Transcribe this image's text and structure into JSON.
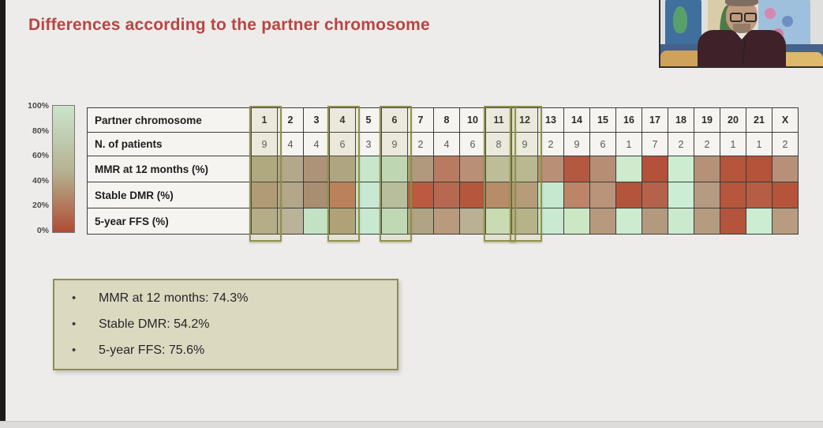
{
  "slide": {
    "title": "Differences according to the partner chromosome"
  },
  "legend": {
    "ticks": [
      "100%",
      "80%",
      "60%",
      "40%",
      "20%",
      "0%"
    ],
    "gradient_top": "#cbe4ca",
    "gradient_mid": "#b5b291",
    "gradient_bottom": "#b04c33"
  },
  "chart_data": {
    "type": "heatmap",
    "title": "Differences according to the partner chromosome",
    "columns_label": "Partner chromosome",
    "columns": [
      "1",
      "2",
      "3",
      "4",
      "5",
      "6",
      "7",
      "8",
      "10",
      "11",
      "12",
      "13",
      "14",
      "15",
      "16",
      "17",
      "18",
      "19",
      "20",
      "21",
      "X"
    ],
    "patients_label": "N. of patients",
    "patients": [
      "9",
      "4",
      "4",
      "6",
      "3",
      "9",
      "2",
      "4",
      "6",
      "8",
      "9",
      "2",
      "9",
      "6",
      "1",
      "7",
      "2",
      "2",
      "1",
      "1",
      "2"
    ],
    "rows": [
      {
        "label": "MMR at 12 months (%)",
        "colors": [
          "#b2ab88",
          "#b3a98a",
          "#ad9377",
          "#b2a689",
          "#c7e6cb",
          "#c3dfc2",
          "#b0997c",
          "#b97b60",
          "#b98f75",
          "#c2c3a3",
          "#bdbc9b",
          "#b98f76",
          "#b4583f",
          "#b68e73",
          "#cfeacd",
          "#b4513a",
          "#cdedd1",
          "#b49177",
          "#b4553c",
          "#b4523a",
          "#b69178"
        ]
      },
      {
        "label": "Stable DMR (%)",
        "colors": [
          "#b29a7d",
          "#b3a689",
          "#a98e72",
          "#bf7d5e",
          "#c9e8d3",
          "#bcc3a7",
          "#bb5a41",
          "#b66950",
          "#b5573d",
          "#ba896d",
          "#b99c80",
          "#c5e8ce",
          "#bc8468",
          "#b9937a",
          "#b4543c",
          "#b4634a",
          "#cbedd4",
          "#b59b82",
          "#b5563d",
          "#b55e45",
          "#b5543b"
        ]
      },
      {
        "label": "5-year FFS (%)",
        "colors": [
          "#b7af91",
          "#bbb399",
          "#c3e2c3",
          "#b2a17f",
          "#c7e8d1",
          "#c5e2c5",
          "#b1a485",
          "#b89a7d",
          "#bab093",
          "#cfe4c0",
          "#b9b694",
          "#c9ead0",
          "#cce7c4",
          "#b79a7e",
          "#cdeccf",
          "#b39a7e",
          "#cbeacd",
          "#b59c81",
          "#b5543c",
          "#ccedd2",
          "#b79c80"
        ]
      }
    ],
    "highlighted_columns": [
      "1",
      "4",
      "6",
      "11",
      "12"
    ],
    "color_scale": {
      "min_label": "0%",
      "max_label": "100%",
      "low_color": "#b04c33",
      "high_color": "#cbe4ca"
    }
  },
  "summary": {
    "items": [
      "MMR at 12 months: 74.3%",
      "Stable DMR: 54.2%",
      "5-year FFS: 75.6%"
    ]
  },
  "colors": {
    "title": "#b94542",
    "highlight_outline": "#8d8d48",
    "summary_background": "#dcd9c1",
    "summary_border": "#8b8d55"
  }
}
